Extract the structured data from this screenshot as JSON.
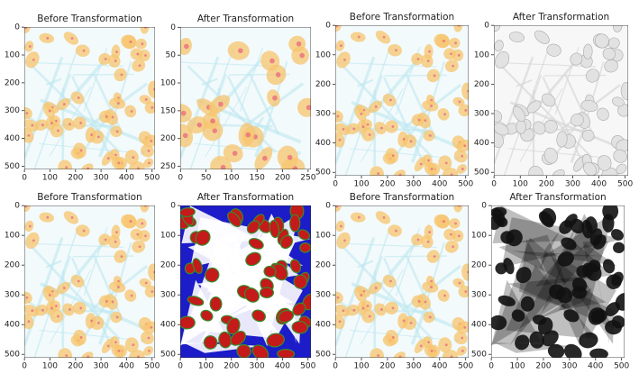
{
  "panels": [
    {
      "title": "Before Transformation",
      "xlim": [
        -0.5,
        511.5
      ],
      "ylim": [
        -0.5,
        511.5
      ],
      "xticks": [
        0,
        100,
        200,
        300,
        400,
        500
      ],
      "yticks": [
        0,
        100,
        200,
        300,
        400,
        500
      ]
    },
    {
      "title": "After Transformation",
      "xlim": [
        -0.5,
        255.5
      ],
      "ylim": [
        -0.5,
        255.5
      ],
      "xticks": [
        0,
        50,
        100,
        150,
        200,
        250
      ],
      "yticks": [
        0,
        50,
        100,
        150,
        200,
        250
      ]
    },
    {
      "title": "Before Transformation",
      "xlim": [
        -0.5,
        511.5
      ],
      "ylim": [
        -0.5,
        511.5
      ],
      "xticks": [
        0,
        100,
        200,
        300,
        400,
        500
      ],
      "yticks": [
        0,
        100,
        200,
        300,
        400,
        500
      ]
    },
    {
      "title": "After Transformation",
      "xlim": [
        -0.5,
        511.5
      ],
      "ylim": [
        -0.5,
        511.5
      ],
      "xticks": [
        0,
        100,
        200,
        300,
        400,
        500
      ],
      "yticks": [
        0,
        100,
        200,
        300,
        400,
        500
      ]
    },
    {
      "title": "Before Transformation",
      "xlim": [
        -0.5,
        511.5
      ],
      "ylim": [
        -0.5,
        511.5
      ],
      "xticks": [
        0,
        100,
        200,
        300,
        400,
        500
      ],
      "yticks": [
        0,
        100,
        200,
        300,
        400,
        500
      ]
    },
    {
      "title": "After Transformation",
      "xlim": [
        -0.5,
        511.5
      ],
      "ylim": [
        -0.5,
        511.5
      ],
      "xticks": [
        0,
        100,
        200,
        300,
        400,
        500
      ],
      "yticks": [
        0,
        100,
        200,
        300,
        400,
        500
      ]
    },
    {
      "title": "Before Transformation",
      "xlim": [
        -0.5,
        511.5
      ],
      "ylim": [
        -0.5,
        511.5
      ],
      "xticks": [
        0,
        100,
        200,
        300,
        400,
        500
      ],
      "yticks": [
        0,
        100,
        200,
        300,
        400,
        500
      ]
    },
    {
      "title": "After Transformation",
      "xlim": [
        -0.5,
        511.5
      ],
      "ylim": [
        -0.5,
        511.5
      ],
      "xticks": [
        0,
        100,
        200,
        300,
        400,
        500
      ],
      "yticks": [
        0,
        100,
        200,
        300,
        400,
        500
      ]
    }
  ]
}
